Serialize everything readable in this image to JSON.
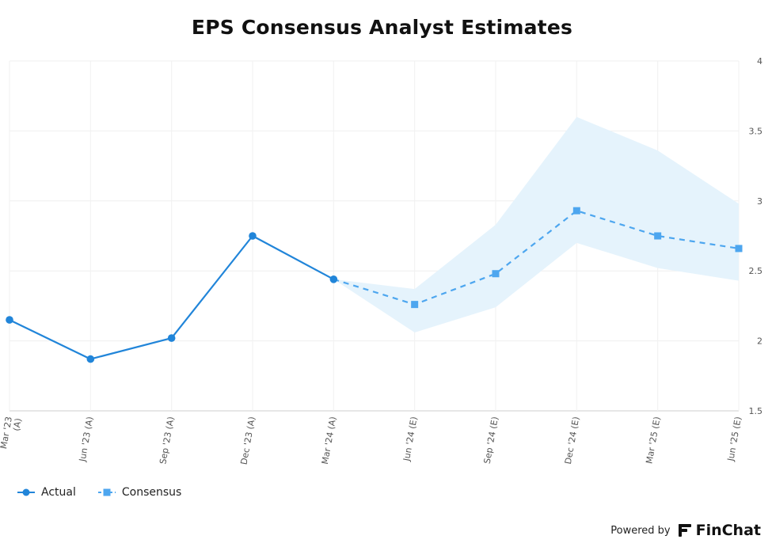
{
  "chart_data": {
    "type": "line",
    "title": "EPS Consensus Analyst Estimates",
    "xlabel": "",
    "ylabel": "",
    "categories": [
      "Mar '23 (A)",
      "Jun '23 (A)",
      "Sep '23 (A)",
      "Dec '23 (A)",
      "Mar '24 (A)",
      "Jun '24 (E)",
      "Sep '24 (E)",
      "Dec '24 (E)",
      "Mar '25 (E)",
      "Jun '25 (E)"
    ],
    "ylim": [
      1.5,
      4
    ],
    "yticks": [
      1.5,
      2,
      2.5,
      3,
      3.5,
      4
    ],
    "ytick_labels": [
      "1.5",
      "2",
      "2.5",
      "3",
      "3.5",
      "4"
    ],
    "series": [
      {
        "name": "Actual",
        "color": "#2185d9",
        "values": [
          2.15,
          1.87,
          2.02,
          2.75,
          2.44,
          null,
          null,
          null,
          null,
          null
        ]
      },
      {
        "name": "Consensus",
        "color": "#4da6ef",
        "values": [
          null,
          null,
          null,
          null,
          2.44,
          2.26,
          2.48,
          2.93,
          2.75,
          2.66
        ]
      }
    ],
    "range_band": {
      "color": "#e4f2fc",
      "high": [
        null,
        null,
        null,
        null,
        2.44,
        2.37,
        2.83,
        3.6,
        3.36,
        2.98
      ],
      "low": [
        null,
        null,
        null,
        null,
        2.44,
        2.06,
        2.24,
        2.7,
        2.52,
        2.43
      ]
    },
    "legend_position": "bottom-left",
    "grid": true
  },
  "legend": {
    "actual_label": "Actual",
    "consensus_label": "Consensus"
  },
  "footer": {
    "powered_by": "Powered by",
    "brand": "FinChat"
  }
}
